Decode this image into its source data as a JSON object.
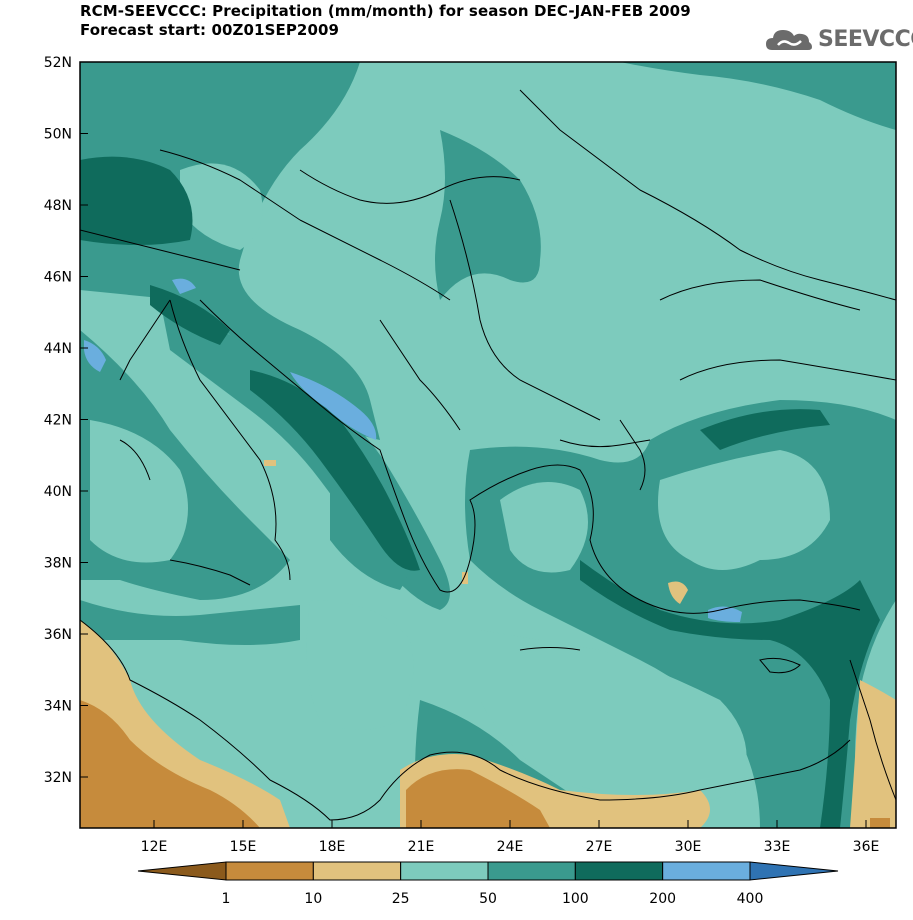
{
  "title_line1": "RCM-SEEVCCC: Precipitation (mm/month) for season DEC-JAN-FEB 2009",
  "title_line2": "Forecast start: 00Z01SEP2009",
  "logo_text": "SEEVCCC",
  "lat_labels": [
    "52N",
    "50N",
    "48N",
    "46N",
    "44N",
    "42N",
    "40N",
    "38N",
    "36N",
    "34N",
    "32N"
  ],
  "lon_labels": [
    "12E",
    "15E",
    "18E",
    "21E",
    "24E",
    "27E",
    "30E",
    "33E",
    "36E"
  ],
  "colorbar": {
    "labels": [
      "1",
      "10",
      "25",
      "50",
      "100",
      "200",
      "400"
    ],
    "colors": [
      "#8b5a1c",
      "#c68b3c",
      "#e1c27e",
      "#7dcbbd",
      "#3a9a8e",
      "#0f6b5c",
      "#6aaede",
      "#2f73b3"
    ]
  },
  "colors": {
    "c50": "#7dcbbd",
    "c100": "#3a9a8e",
    "c200": "#0f6b5c",
    "c400": "#6aaede",
    "c25": "#e1c27e",
    "c10": "#c68b3c"
  }
}
